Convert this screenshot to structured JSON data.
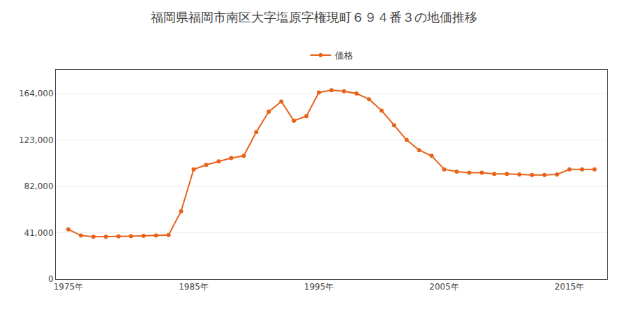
{
  "chart_data": {
    "type": "line",
    "title": "福岡県福岡市南区大字塩原字権現町６９４番３の地価推移",
    "series": [
      {
        "name": "価格",
        "color": "#E8621A",
        "marker": "circle",
        "line_style": "solid",
        "values": [
          44000,
          38500,
          37500,
          37500,
          37800,
          38000,
          38200,
          38500,
          39000,
          60000,
          97000,
          101000,
          104000,
          107000,
          109000,
          130000,
          148000,
          157000,
          140000,
          144000,
          165000,
          167000,
          166000,
          164000,
          159000,
          149000,
          136000,
          123000,
          114000,
          109000,
          97000,
          95000,
          94000,
          94000,
          93000,
          93000,
          92500,
          92000,
          92000,
          92500,
          97000,
          97000,
          97000
        ]
      }
    ],
    "x": [
      1975,
      1976,
      1977,
      1978,
      1979,
      1980,
      1981,
      1982,
      1983,
      1984,
      1985,
      1986,
      1987,
      1988,
      1989,
      1990,
      1991,
      1992,
      1993,
      1994,
      1995,
      1996,
      1997,
      1998,
      1999,
      2000,
      2001,
      2002,
      2003,
      2004,
      2005,
      2006,
      2007,
      2008,
      2009,
      2010,
      2011,
      2012,
      2013,
      2014,
      2015,
      2016,
      2017
    ],
    "xlim": [
      1974,
      2018
    ],
    "xticks": [
      {
        "value": 1975,
        "label": "1975年"
      },
      {
        "value": 1985,
        "label": "1985年"
      },
      {
        "value": 1995,
        "label": "1995年"
      },
      {
        "value": 2005,
        "label": "2005年"
      },
      {
        "value": 2015,
        "label": "2015年"
      }
    ],
    "ylim": [
      0,
      185000
    ],
    "yticks": [
      0,
      {
        "value": 41000,
        "label": "41,000"
      },
      {
        "value": 82000,
        "label": "82,000"
      },
      {
        "value": 123000,
        "label": "123,000"
      },
      {
        "value": 164000,
        "label": "164,000"
      }
    ],
    "grid": true,
    "legend": "top"
  }
}
